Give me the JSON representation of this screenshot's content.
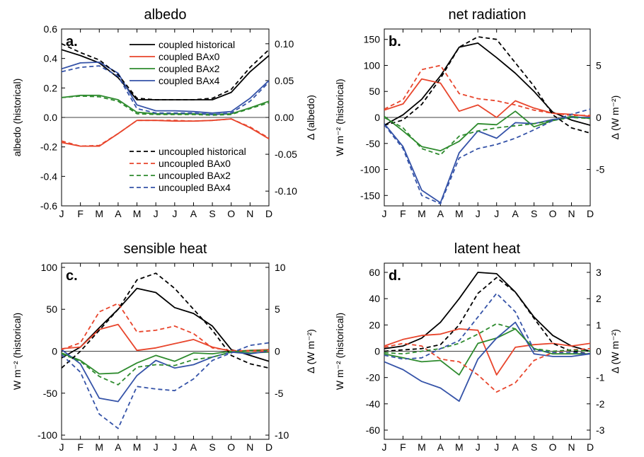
{
  "colors": {
    "historical": "#000000",
    "BAx0": "#e8452c",
    "BAx2": "#2e8b2e",
    "BAx4": "#3553a8",
    "axis": "#000000",
    "zero_line": "#000000"
  },
  "legend": {
    "placement": "top-right of panel a",
    "coupled": [
      "coupled historical",
      "coupled BAx0",
      "coupled BAx2",
      "coupled BAx4"
    ],
    "uncoupled": [
      "uncoupled historical",
      "uncoupled BAx0",
      "uncoupled BAx2",
      "uncoupled BAx4"
    ]
  },
  "chart_data": [
    {
      "type": "line",
      "panel_label": "a.",
      "title": "albedo",
      "ylabel": "albedo (historical)",
      "ylabel2": "Δ (albedo)",
      "categories": [
        "J",
        "F",
        "M",
        "A",
        "M",
        "J",
        "J",
        "A",
        "S",
        "O",
        "N",
        "D"
      ],
      "ylim": [
        -0.6,
        0.6
      ],
      "yticks": [
        -0.6,
        -0.4,
        -0.2,
        0.0,
        0.2,
        0.4,
        0.6
      ],
      "ytick_labels": [
        "-0.6",
        "-0.4",
        "-0.2",
        "0.0",
        "0.2",
        "0.4",
        "0.6"
      ],
      "ylim2": [
        -0.12,
        0.12
      ],
      "yticks2": [
        -0.1,
        -0.05,
        0.0,
        0.05,
        0.1
      ],
      "ytick2_labels": [
        "-0.10",
        "-0.05",
        "0.00",
        "0.05",
        "0.10"
      ],
      "legend": true,
      "series": [
        {
          "key": "historical",
          "axis": "left",
          "dash": false,
          "values": [
            0.46,
            0.42,
            0.37,
            0.27,
            0.12,
            0.12,
            0.12,
            0.12,
            0.12,
            0.17,
            0.31,
            0.42
          ]
        },
        {
          "key": "BAx0",
          "axis": "right",
          "dash": false,
          "values": [
            -0.034,
            -0.039,
            -0.039,
            -0.022,
            -0.004,
            -0.004,
            -0.005,
            -0.005,
            -0.004,
            -0.002,
            -0.014,
            -0.029
          ]
        },
        {
          "key": "BAx2",
          "axis": "right",
          "dash": false,
          "values": [
            0.027,
            0.03,
            0.03,
            0.024,
            0.007,
            0.005,
            0.005,
            0.005,
            0.004,
            0.005,
            0.013,
            0.022
          ]
        },
        {
          "key": "BAx4",
          "axis": "right",
          "dash": false,
          "values": [
            0.066,
            0.074,
            0.075,
            0.06,
            0.017,
            0.009,
            0.009,
            0.008,
            0.006,
            0.008,
            0.026,
            0.05
          ]
        },
        {
          "key": "historical",
          "axis": "left",
          "dash": true,
          "values": [
            0.5,
            0.44,
            0.39,
            0.29,
            0.13,
            0.12,
            0.12,
            0.12,
            0.13,
            0.19,
            0.34,
            0.46
          ]
        },
        {
          "key": "BAx0",
          "axis": "right",
          "dash": true,
          "values": [
            -0.032,
            -0.039,
            -0.038,
            -0.022,
            -0.004,
            -0.004,
            -0.004,
            -0.005,
            -0.004,
            -0.002,
            -0.013,
            -0.028
          ]
        },
        {
          "key": "BAx2",
          "axis": "right",
          "dash": true,
          "values": [
            0.027,
            0.029,
            0.028,
            0.022,
            0.005,
            0.004,
            0.004,
            0.004,
            0.003,
            0.004,
            0.012,
            0.02
          ]
        },
        {
          "key": "BAx4",
          "axis": "right",
          "dash": true,
          "values": [
            0.062,
            0.068,
            0.07,
            0.056,
            0.012,
            0.006,
            0.006,
            0.006,
            0.004,
            0.006,
            0.022,
            0.048
          ]
        }
      ]
    },
    {
      "type": "line",
      "panel_label": "b.",
      "title": "net radiation",
      "ylabel": "W m⁻² (historical)",
      "ylabel2": "Δ (W m⁻²)",
      "categories": [
        "J",
        "F",
        "M",
        "A",
        "M",
        "J",
        "J",
        "A",
        "S",
        "O",
        "N",
        "D"
      ],
      "ylim": [
        -170,
        170
      ],
      "yticks": [
        -150,
        -100,
        -50,
        0,
        50,
        100,
        150
      ],
      "ytick_labels": [
        "-150",
        "-100",
        "-50",
        "0",
        "50",
        "100",
        "150"
      ],
      "ylim2": [
        -8.5,
        8.5
      ],
      "yticks2": [
        -5,
        0,
        5
      ],
      "ytick2_labels": [
        "-5",
        "0",
        "5"
      ],
      "legend": false,
      "series": [
        {
          "key": "historical",
          "axis": "left",
          "dash": false,
          "values": [
            -15,
            5,
            35,
            80,
            135,
            143,
            115,
            85,
            50,
            10,
            -5,
            -15
          ]
        },
        {
          "key": "BAx0",
          "axis": "right",
          "dash": false,
          "values": [
            0.7,
            1.3,
            3.7,
            3.3,
            0.6,
            1.2,
            0.0,
            1.6,
            0.9,
            0.4,
            0.3,
            0.1
          ]
        },
        {
          "key": "BAx2",
          "axis": "right",
          "dash": false,
          "values": [
            0.1,
            -1.3,
            -2.8,
            -3.2,
            -2.3,
            -0.6,
            -0.7,
            0.6,
            -0.9,
            -0.3,
            0.1,
            -0.1
          ]
        },
        {
          "key": "BAx4",
          "axis": "right",
          "dash": false,
          "values": [
            -0.6,
            -2.8,
            -7.0,
            -8.2,
            -3.4,
            -1.3,
            -2.0,
            -0.5,
            -0.6,
            -0.2,
            0.0,
            0.0
          ]
        },
        {
          "key": "historical",
          "axis": "left",
          "dash": true,
          "values": [
            -15,
            -5,
            25,
            75,
            135,
            155,
            150,
            105,
            60,
            5,
            -20,
            -30
          ]
        },
        {
          "key": "BAx0",
          "axis": "right",
          "dash": true,
          "values": [
            0.8,
            1.7,
            4.6,
            5.0,
            2.3,
            1.8,
            1.6,
            1.2,
            0.7,
            0.4,
            0.2,
            0.2
          ]
        },
        {
          "key": "BAx2",
          "axis": "right",
          "dash": true,
          "values": [
            0.0,
            -1.0,
            -3.0,
            -3.6,
            -1.8,
            -1.3,
            -1.0,
            -0.8,
            -0.6,
            -0.3,
            0.0,
            -0.1
          ]
        },
        {
          "key": "BAx4",
          "axis": "right",
          "dash": true,
          "values": [
            -0.7,
            -3.0,
            -7.5,
            -8.3,
            -3.9,
            -3.0,
            -2.6,
            -2.0,
            -1.2,
            -0.3,
            0.3,
            0.8
          ]
        }
      ]
    },
    {
      "type": "line",
      "panel_label": "c.",
      "title": "sensible heat",
      "ylabel": "W m⁻² (historical)",
      "ylabel2": "Δ (W m⁻²)",
      "categories": [
        "J",
        "F",
        "M",
        "A",
        "M",
        "J",
        "J",
        "A",
        "S",
        "O",
        "N",
        "D"
      ],
      "ylim": [
        -105,
        105
      ],
      "yticks": [
        -100,
        -50,
        0,
        50,
        100
      ],
      "ytick_labels": [
        "-100",
        "-50",
        "0",
        "50",
        "100"
      ],
      "ylim2": [
        -10.5,
        10.5
      ],
      "yticks2": [
        -10,
        -5,
        0,
        5,
        10
      ],
      "ytick2_labels": [
        "-10",
        "-5",
        "0",
        "5",
        "10"
      ],
      "legend": false,
      "series": [
        {
          "key": "historical",
          "axis": "left",
          "dash": false,
          "values": [
            -8,
            5,
            28,
            50,
            75,
            70,
            52,
            45,
            30,
            2,
            -5,
            -12
          ]
        },
        {
          "key": "BAx0",
          "axis": "right",
          "dash": false,
          "values": [
            0.3,
            0.5,
            2.6,
            3.2,
            0.1,
            0.4,
            0.9,
            1.4,
            0.5,
            0.0,
            0.1,
            0.2
          ]
        },
        {
          "key": "BAx2",
          "axis": "right",
          "dash": false,
          "values": [
            -0.2,
            -1.1,
            -2.7,
            -2.6,
            -1.4,
            -0.5,
            -1.2,
            -0.2,
            -0.3,
            0.0,
            -0.2,
            -0.1
          ]
        },
        {
          "key": "BAx4",
          "axis": "right",
          "dash": false,
          "values": [
            0.2,
            -1.5,
            -5.6,
            -6.0,
            -2.9,
            -1.1,
            -2.0,
            -1.6,
            -0.7,
            -0.1,
            -0.3,
            0.0
          ]
        },
        {
          "key": "historical",
          "axis": "left",
          "dash": true,
          "values": [
            -20,
            0,
            25,
            50,
            85,
            93,
            75,
            50,
            25,
            -5,
            -15,
            -20
          ]
        },
        {
          "key": "BAx0",
          "axis": "right",
          "dash": true,
          "values": [
            0.2,
            1.0,
            4.7,
            5.7,
            2.3,
            2.5,
            3.0,
            2.1,
            0.4,
            0.1,
            0.0,
            0.0
          ]
        },
        {
          "key": "BAx2",
          "axis": "right",
          "dash": true,
          "values": [
            -0.3,
            -1.2,
            -3.0,
            -4.0,
            -1.9,
            -1.6,
            -1.7,
            -1.0,
            -0.7,
            -0.1,
            0.1,
            0.1
          ]
        },
        {
          "key": "BAx4",
          "axis": "right",
          "dash": true,
          "values": [
            -0.4,
            -2.5,
            -7.5,
            -9.2,
            -4.2,
            -4.5,
            -4.7,
            -3.3,
            -1.1,
            -0.2,
            0.7,
            1.0
          ]
        }
      ]
    },
    {
      "type": "line",
      "panel_label": "d.",
      "title": "latent heat",
      "ylabel": "W m⁻² (historical)",
      "ylabel2": "Δ (W m⁻²)",
      "categories": [
        "J",
        "F",
        "M",
        "A",
        "M",
        "J",
        "J",
        "A",
        "S",
        "O",
        "N",
        "D"
      ],
      "ylim": [
        -67,
        67
      ],
      "yticks": [
        -60,
        -40,
        -20,
        0,
        20,
        40,
        60
      ],
      "ytick_labels": [
        "-60",
        "-40",
        "-20",
        "0",
        "20",
        "40",
        "60"
      ],
      "ylim2": [
        -3.35,
        3.35
      ],
      "yticks2": [
        -3,
        -2,
        -1,
        0,
        1,
        2,
        3
      ],
      "ytick2_labels": [
        "-3",
        "-2",
        "-1",
        "0",
        "1",
        "2",
        "3"
      ],
      "legend": false,
      "series": [
        {
          "key": "historical",
          "axis": "left",
          "dash": false,
          "values": [
            2,
            4,
            10,
            22,
            40,
            60,
            59,
            45,
            26,
            12,
            4,
            0
          ]
        },
        {
          "key": "BAx0",
          "axis": "right",
          "dash": false,
          "values": [
            0.2,
            0.45,
            0.6,
            0.65,
            0.85,
            0.8,
            -0.9,
            0.15,
            0.25,
            0.3,
            0.2,
            0.3
          ]
        },
        {
          "key": "BAx2",
          "axis": "right",
          "dash": false,
          "values": [
            -0.1,
            -0.25,
            -0.4,
            -0.35,
            -0.9,
            0.3,
            0.5,
            0.85,
            0.1,
            -0.1,
            -0.1,
            -0.1
          ]
        },
        {
          "key": "BAx4",
          "axis": "right",
          "dash": false,
          "values": [
            -0.4,
            -0.7,
            -1.15,
            -1.4,
            -1.9,
            -0.3,
            0.5,
            1.1,
            -0.1,
            -0.2,
            -0.2,
            -0.1
          ]
        },
        {
          "key": "historical",
          "axis": "left",
          "dash": true,
          "values": [
            0,
            1,
            2,
            5,
            20,
            44,
            56,
            45,
            25,
            6,
            0,
            -2
          ]
        },
        {
          "key": "BAx0",
          "axis": "right",
          "dash": true,
          "values": [
            0.15,
            0.3,
            0.2,
            -0.3,
            -0.4,
            -0.9,
            -1.55,
            -1.2,
            -0.35,
            -0.05,
            0.05,
            0.1
          ]
        },
        {
          "key": "BAx2",
          "axis": "right",
          "dash": true,
          "values": [
            -0.05,
            -0.1,
            0.0,
            0.1,
            0.3,
            0.65,
            1.05,
            0.85,
            0.1,
            0.0,
            0.05,
            0.0
          ]
        },
        {
          "key": "BAx4",
          "axis": "right",
          "dash": true,
          "values": [
            -0.15,
            -0.3,
            -0.25,
            0.1,
            0.4,
            1.3,
            2.2,
            1.5,
            0.05,
            -0.05,
            -0.05,
            -0.1
          ]
        }
      ]
    }
  ]
}
